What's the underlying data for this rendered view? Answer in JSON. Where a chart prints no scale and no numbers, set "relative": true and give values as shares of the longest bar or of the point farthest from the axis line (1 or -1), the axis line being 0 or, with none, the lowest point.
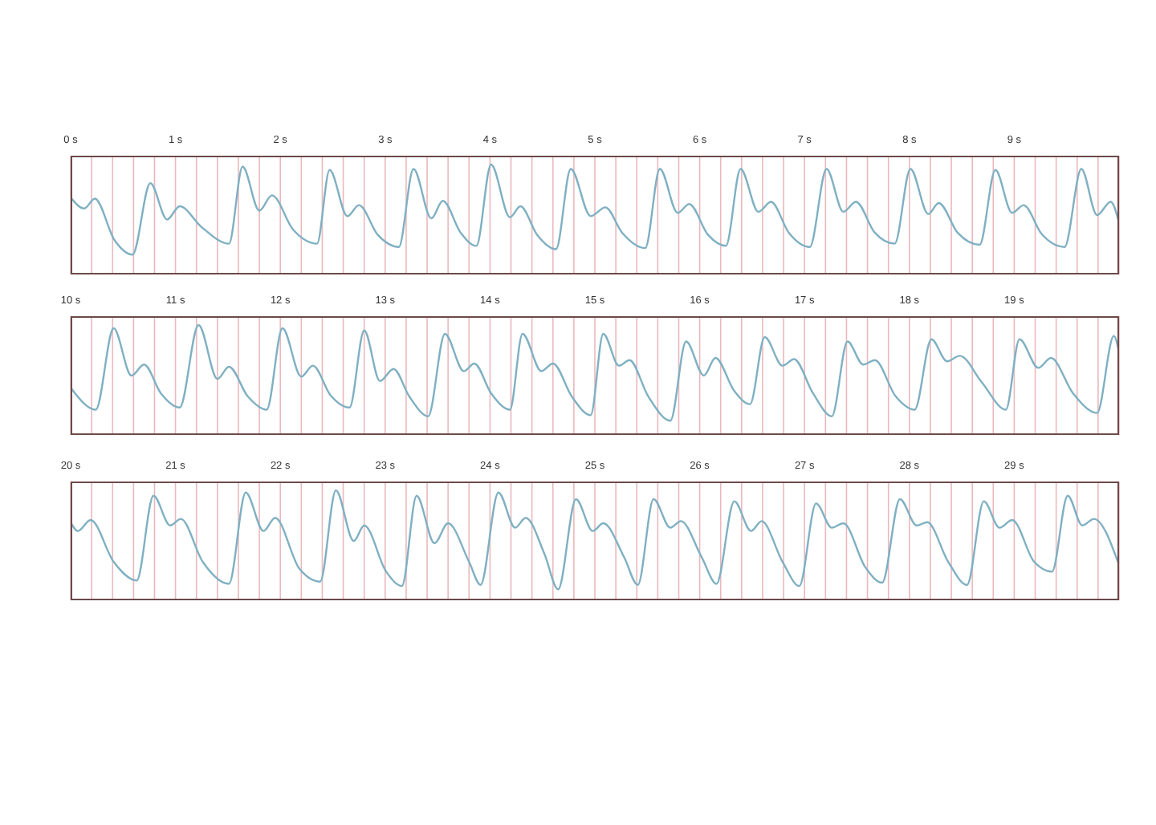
{
  "chart_data": [
    {
      "type": "line",
      "relative": true,
      "grid": "x",
      "color": "#7fb0c2",
      "xlim": [
        0,
        10
      ],
      "xticks": [
        {
          "value": 0,
          "label": "0 s"
        },
        {
          "value": 0.2,
          "label": null
        },
        {
          "value": 0.4,
          "label": null
        },
        {
          "value": 0.6,
          "label": null
        },
        {
          "value": 0.8,
          "label": null
        },
        {
          "value": 1,
          "label": "1 s"
        },
        {
          "value": 1.2,
          "label": null
        },
        {
          "value": 1.4,
          "label": null
        },
        {
          "value": 1.6,
          "label": null
        },
        {
          "value": 1.8,
          "label": null
        },
        {
          "value": 2,
          "label": "2 s"
        },
        {
          "value": 2.2,
          "label": null
        },
        {
          "value": 2.4,
          "label": null
        },
        {
          "value": 2.6,
          "label": null
        },
        {
          "value": 2.8,
          "label": null
        },
        {
          "value": 3,
          "label": "3 s"
        },
        {
          "value": 3.2,
          "label": null
        },
        {
          "value": 3.4,
          "label": null
        },
        {
          "value": 3.6,
          "label": null
        },
        {
          "value": 3.8,
          "label": null
        },
        {
          "value": 4,
          "label": "4 s"
        },
        {
          "value": 4.2,
          "label": null
        },
        {
          "value": 4.4,
          "label": null
        },
        {
          "value": 4.6,
          "label": null
        },
        {
          "value": 4.8,
          "label": null
        },
        {
          "value": 5,
          "label": "5 s"
        },
        {
          "value": 5.2,
          "label": null
        },
        {
          "value": 5.4,
          "label": null
        },
        {
          "value": 5.6,
          "label": null
        },
        {
          "value": 5.8,
          "label": null
        },
        {
          "value": 6,
          "label": "6 s"
        },
        {
          "value": 6.2,
          "label": null
        },
        {
          "value": 6.4,
          "label": null
        },
        {
          "value": 6.6,
          "label": null
        },
        {
          "value": 6.8,
          "label": null
        },
        {
          "value": 7,
          "label": "7 s"
        },
        {
          "value": 7.2,
          "label": null
        },
        {
          "value": 7.4,
          "label": null
        },
        {
          "value": 7.6,
          "label": null
        },
        {
          "value": 7.8,
          "label": null
        },
        {
          "value": 8,
          "label": "8 s"
        },
        {
          "value": 8.2,
          "label": null
        },
        {
          "value": 8.4,
          "label": null
        },
        {
          "value": 8.6,
          "label": null
        },
        {
          "value": 8.8,
          "label": null
        },
        {
          "value": 9,
          "label": "9 s"
        },
        {
          "value": 9.2,
          "label": null
        },
        {
          "value": 9.4,
          "label": null
        },
        {
          "value": 9.6,
          "label": null
        },
        {
          "value": 9.8,
          "label": null
        },
        {
          "value": 10,
          "label": null
        }
      ],
      "x": [
        0,
        0.13,
        0.23,
        0.42,
        0.59,
        0.76,
        0.92,
        1.04,
        1.25,
        1.51,
        1.64,
        1.8,
        1.92,
        2.12,
        2.35,
        2.47,
        2.64,
        2.75,
        2.93,
        3.13,
        3.27,
        3.44,
        3.55,
        3.72,
        3.87,
        4.01,
        4.19,
        4.29,
        4.45,
        4.63,
        4.77,
        4.96,
        5.1,
        5.26,
        5.48,
        5.62,
        5.79,
        5.9,
        6.08,
        6.25,
        6.39,
        6.56,
        6.68,
        6.85,
        7.05,
        7.21,
        7.37,
        7.49,
        7.67,
        7.86,
        8.01,
        8.18,
        8.28,
        8.46,
        8.67,
        8.82,
        8.98,
        9.09,
        9.26,
        9.48,
        9.64,
        9.79,
        9.92,
        10
      ],
      "values": [
        0.7,
        0.6,
        0.69,
        0.31,
        0.18,
        0.83,
        0.5,
        0.62,
        0.43,
        0.28,
        0.98,
        0.58,
        0.72,
        0.41,
        0.28,
        0.95,
        0.53,
        0.63,
        0.36,
        0.25,
        0.96,
        0.51,
        0.67,
        0.38,
        0.26,
        1,
        0.52,
        0.62,
        0.36,
        0.23,
        0.96,
        0.53,
        0.61,
        0.38,
        0.24,
        0.96,
        0.56,
        0.64,
        0.36,
        0.26,
        0.96,
        0.57,
        0.66,
        0.38,
        0.25,
        0.96,
        0.57,
        0.66,
        0.38,
        0.28,
        0.96,
        0.55,
        0.65,
        0.38,
        0.27,
        0.95,
        0.56,
        0.63,
        0.37,
        0.25,
        0.96,
        0.54,
        0.66,
        0.47
      ]
    },
    {
      "type": "line",
      "relative": true,
      "grid": "x",
      "color": "#7fb0c2",
      "xlim": [
        10,
        20
      ],
      "xticks": [
        {
          "value": 10,
          "label": "10 s"
        },
        {
          "value": 10.2,
          "label": null
        },
        {
          "value": 10.4,
          "label": null
        },
        {
          "value": 10.6,
          "label": null
        },
        {
          "value": 10.8,
          "label": null
        },
        {
          "value": 11,
          "label": "11 s"
        },
        {
          "value": 11.2,
          "label": null
        },
        {
          "value": 11.4,
          "label": null
        },
        {
          "value": 11.6,
          "label": null
        },
        {
          "value": 11.8,
          "label": null
        },
        {
          "value": 12,
          "label": "12 s"
        },
        {
          "value": 12.2,
          "label": null
        },
        {
          "value": 12.4,
          "label": null
        },
        {
          "value": 12.6,
          "label": null
        },
        {
          "value": 12.8,
          "label": null
        },
        {
          "value": 13,
          "label": "13 s"
        },
        {
          "value": 13.2,
          "label": null
        },
        {
          "value": 13.4,
          "label": null
        },
        {
          "value": 13.6,
          "label": null
        },
        {
          "value": 13.8,
          "label": null
        },
        {
          "value": 14,
          "label": "14 s"
        },
        {
          "value": 14.2,
          "label": null
        },
        {
          "value": 14.4,
          "label": null
        },
        {
          "value": 14.6,
          "label": null
        },
        {
          "value": 14.8,
          "label": null
        },
        {
          "value": 15,
          "label": "15 s"
        },
        {
          "value": 15.2,
          "label": null
        },
        {
          "value": 15.4,
          "label": null
        },
        {
          "value": 15.6,
          "label": null
        },
        {
          "value": 15.8,
          "label": null
        },
        {
          "value": 16,
          "label": "16 s"
        },
        {
          "value": 16.2,
          "label": null
        },
        {
          "value": 16.4,
          "label": null
        },
        {
          "value": 16.6,
          "label": null
        },
        {
          "value": 16.8,
          "label": null
        },
        {
          "value": 17,
          "label": "17 s"
        },
        {
          "value": 17.2,
          "label": null
        },
        {
          "value": 17.4,
          "label": null
        },
        {
          "value": 17.6,
          "label": null
        },
        {
          "value": 17.8,
          "label": null
        },
        {
          "value": 18,
          "label": "18 s"
        },
        {
          "value": 18.2,
          "label": null
        },
        {
          "value": 18.4,
          "label": null
        },
        {
          "value": 18.6,
          "label": null
        },
        {
          "value": 18.8,
          "label": null
        },
        {
          "value": 19,
          "label": "19 s"
        },
        {
          "value": 19.2,
          "label": null
        },
        {
          "value": 19.4,
          "label": null
        },
        {
          "value": 19.6,
          "label": null
        },
        {
          "value": 19.8,
          "label": null
        },
        {
          "value": 20,
          "label": null
        }
      ],
      "x": [
        10,
        10.24,
        10.41,
        10.58,
        10.7,
        10.86,
        11.04,
        11.22,
        11.4,
        11.51,
        11.69,
        11.87,
        12.02,
        12.2,
        12.31,
        12.48,
        12.66,
        12.8,
        12.95,
        13.08,
        13.23,
        13.41,
        13.57,
        13.75,
        13.85,
        14.01,
        14.19,
        14.31,
        14.49,
        14.6,
        14.78,
        14.96,
        15.08,
        15.23,
        15.33,
        15.51,
        15.72,
        15.87,
        16.04,
        16.15,
        16.33,
        16.48,
        16.62,
        16.79,
        16.9,
        17.08,
        17.26,
        17.41,
        17.56,
        17.67,
        17.87,
        18.05,
        18.21,
        18.36,
        18.48,
        18.69,
        18.92,
        19.05,
        19.23,
        19.35,
        19.56,
        19.79,
        19.95,
        20
      ],
      "values": [
        0.43,
        0.23,
        0.97,
        0.54,
        0.64,
        0.38,
        0.25,
        1,
        0.51,
        0.62,
        0.35,
        0.23,
        0.97,
        0.53,
        0.63,
        0.36,
        0.25,
        0.95,
        0.49,
        0.6,
        0.35,
        0.17,
        0.92,
        0.58,
        0.65,
        0.38,
        0.23,
        0.92,
        0.58,
        0.65,
        0.35,
        0.18,
        0.92,
        0.63,
        0.68,
        0.35,
        0.13,
        0.85,
        0.54,
        0.7,
        0.4,
        0.28,
        0.89,
        0.63,
        0.69,
        0.38,
        0.17,
        0.85,
        0.64,
        0.68,
        0.35,
        0.23,
        0.87,
        0.67,
        0.72,
        0.48,
        0.23,
        0.87,
        0.61,
        0.7,
        0.38,
        0.2,
        0.9,
        0.75
      ]
    },
    {
      "type": "line",
      "relative": true,
      "grid": "x",
      "color": "#7fb0c2",
      "xlim": [
        20,
        30
      ],
      "xticks": [
        {
          "value": 20,
          "label": "20 s"
        },
        {
          "value": 20.2,
          "label": null
        },
        {
          "value": 20.4,
          "label": null
        },
        {
          "value": 20.6,
          "label": null
        },
        {
          "value": 20.8,
          "label": null
        },
        {
          "value": 21,
          "label": "21 s"
        },
        {
          "value": 21.2,
          "label": null
        },
        {
          "value": 21.4,
          "label": null
        },
        {
          "value": 21.6,
          "label": null
        },
        {
          "value": 21.8,
          "label": null
        },
        {
          "value": 22,
          "label": "22 s"
        },
        {
          "value": 22.2,
          "label": null
        },
        {
          "value": 22.4,
          "label": null
        },
        {
          "value": 22.6,
          "label": null
        },
        {
          "value": 22.8,
          "label": null
        },
        {
          "value": 23,
          "label": "23 s"
        },
        {
          "value": 23.2,
          "label": null
        },
        {
          "value": 23.4,
          "label": null
        },
        {
          "value": 23.6,
          "label": null
        },
        {
          "value": 23.8,
          "label": null
        },
        {
          "value": 24,
          "label": "24 s"
        },
        {
          "value": 24.2,
          "label": null
        },
        {
          "value": 24.4,
          "label": null
        },
        {
          "value": 24.6,
          "label": null
        },
        {
          "value": 24.8,
          "label": null
        },
        {
          "value": 25,
          "label": "25 s"
        },
        {
          "value": 25.2,
          "label": null
        },
        {
          "value": 25.4,
          "label": null
        },
        {
          "value": 25.6,
          "label": null
        },
        {
          "value": 25.8,
          "label": null
        },
        {
          "value": 26,
          "label": "26 s"
        },
        {
          "value": 26.2,
          "label": null
        },
        {
          "value": 26.4,
          "label": null
        },
        {
          "value": 26.6,
          "label": null
        },
        {
          "value": 26.8,
          "label": null
        },
        {
          "value": 27,
          "label": "27 s"
        },
        {
          "value": 27.2,
          "label": null
        },
        {
          "value": 27.4,
          "label": null
        },
        {
          "value": 27.6,
          "label": null
        },
        {
          "value": 27.8,
          "label": null
        },
        {
          "value": 28,
          "label": "28 s"
        },
        {
          "value": 28.2,
          "label": null
        },
        {
          "value": 28.4,
          "label": null
        },
        {
          "value": 28.6,
          "label": null
        },
        {
          "value": 28.8,
          "label": null
        },
        {
          "value": 29,
          "label": "29 s"
        },
        {
          "value": 29.2,
          "label": null
        },
        {
          "value": 29.4,
          "label": null
        },
        {
          "value": 29.6,
          "label": null
        },
        {
          "value": 29.8,
          "label": null
        },
        {
          "value": 30,
          "label": null
        }
      ],
      "x": [
        20,
        20.07,
        20.19,
        20.41,
        20.63,
        20.79,
        20.95,
        21.05,
        21.26,
        21.51,
        21.67,
        21.84,
        21.95,
        22.18,
        22.38,
        22.53,
        22.7,
        22.8,
        23.01,
        23.16,
        23.3,
        23.47,
        23.6,
        23.8,
        23.91,
        24.08,
        24.24,
        24.34,
        24.52,
        24.65,
        24.82,
        24.98,
        25.08,
        25.28,
        25.41,
        25.56,
        25.72,
        25.82,
        26.02,
        26.16,
        26.33,
        26.49,
        26.59,
        26.79,
        26.95,
        27.11,
        27.26,
        27.37,
        27.58,
        27.74,
        27.91,
        28.07,
        28.17,
        28.37,
        28.55,
        28.71,
        28.86,
        28.98,
        29.19,
        29.36,
        29.51,
        29.65,
        29.76,
        30
      ],
      "values": [
        0.71,
        0.63,
        0.73,
        0.35,
        0.18,
        0.95,
        0.68,
        0.74,
        0.35,
        0.15,
        0.98,
        0.63,
        0.75,
        0.29,
        0.17,
        1,
        0.54,
        0.68,
        0.26,
        0.13,
        0.95,
        0.52,
        0.7,
        0.35,
        0.14,
        0.98,
        0.66,
        0.75,
        0.42,
        0.1,
        0.92,
        0.63,
        0.7,
        0.39,
        0.14,
        0.92,
        0.66,
        0.72,
        0.39,
        0.15,
        0.9,
        0.63,
        0.72,
        0.35,
        0.13,
        0.88,
        0.66,
        0.7,
        0.3,
        0.16,
        0.92,
        0.68,
        0.71,
        0.35,
        0.14,
        0.9,
        0.66,
        0.73,
        0.35,
        0.26,
        0.95,
        0.68,
        0.74,
        0.32
      ]
    }
  ]
}
